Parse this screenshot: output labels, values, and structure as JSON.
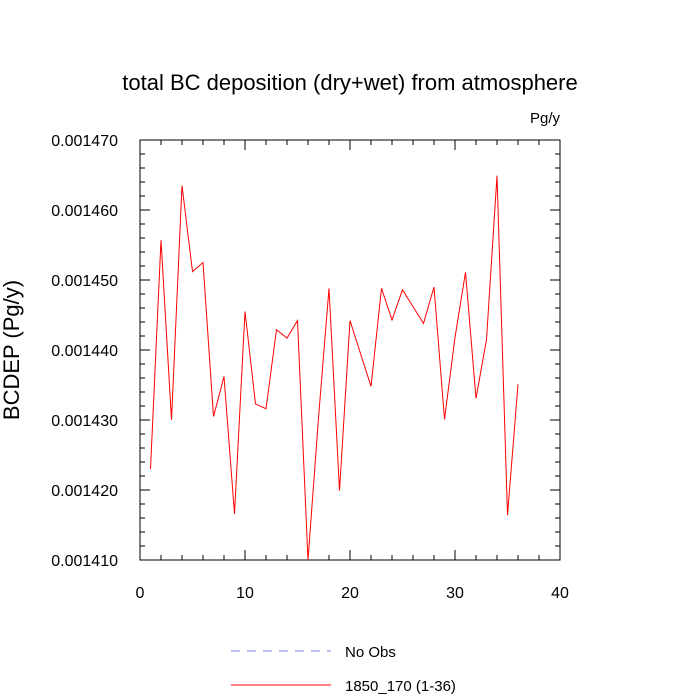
{
  "chart_data": {
    "type": "line",
    "title": "total BC deposition (dry+wet) from atmosphere",
    "units": "Pg/y",
    "ylabel": "BCDEP  (Pg/y)",
    "xlabel": "",
    "xlim": [
      0,
      40
    ],
    "ylim": [
      0.00141,
      0.00147
    ],
    "x_ticks": [
      0,
      10,
      20,
      30,
      40
    ],
    "x_tick_labels": [
      "0",
      "10",
      "20",
      "30",
      "40"
    ],
    "y_ticks": [
      0.00141,
      0.00142,
      0.00143,
      0.00144,
      0.00145,
      0.00146,
      0.00147
    ],
    "y_tick_labels": [
      "0.001410",
      "0.001420",
      "0.001430",
      "0.001440",
      "0.001450",
      "0.001460",
      "0.001470"
    ],
    "grid": false,
    "legend_position": "bottom",
    "series": [
      {
        "name": "No Obs",
        "color": "#8080ff",
        "dash": "dashed",
        "x": [],
        "values": []
      },
      {
        "name": "1850_170 (1-36)",
        "color": "#ff0000",
        "dash": "solid",
        "x": [
          1,
          2,
          3,
          4,
          5,
          6,
          7,
          8,
          9,
          10,
          11,
          12,
          13,
          14,
          15,
          16,
          17,
          18,
          19,
          20,
          21,
          22,
          23,
          24,
          25,
          26,
          27,
          28,
          29,
          30,
          31,
          32,
          33,
          34,
          35,
          36
        ],
        "values": [
          0.001423,
          0.0014557,
          0.00143,
          0.0014635,
          0.0014512,
          0.0014525,
          0.0014305,
          0.0014362,
          0.0014166,
          0.0014455,
          0.0014323,
          0.0014316,
          0.0014429,
          0.0014417,
          0.0014442,
          0.00141,
          0.0014303,
          0.0014488,
          0.0014199,
          0.0014442,
          0.0014395,
          0.0014348,
          0.0014488,
          0.0014443,
          0.0014486,
          0.0014462,
          0.0014438,
          0.001449,
          0.0014301,
          0.0014418,
          0.0014511,
          0.0014331,
          0.0014415,
          0.0014649,
          0.0014164,
          0.0014351
        ]
      }
    ]
  }
}
